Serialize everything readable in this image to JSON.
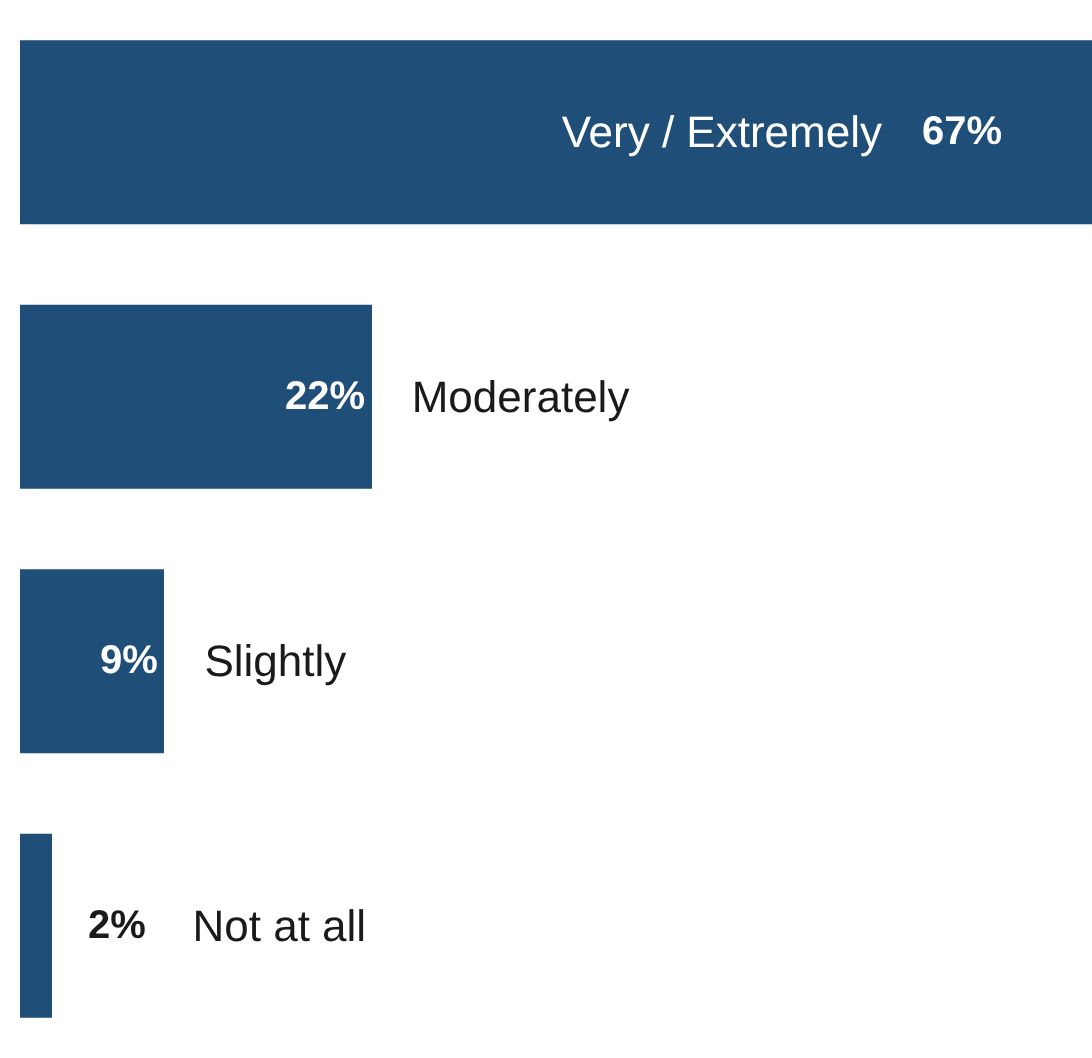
{
  "chart_data": {
    "type": "bar",
    "orientation": "horizontal",
    "categories": [
      "Very / Extremely",
      "Moderately",
      "Slightly",
      "Not at all"
    ],
    "values": [
      67,
      22,
      9,
      2
    ],
    "value_labels": [
      "67%",
      "22%",
      "9%",
      "2%"
    ],
    "color": "#1f4e79"
  }
}
